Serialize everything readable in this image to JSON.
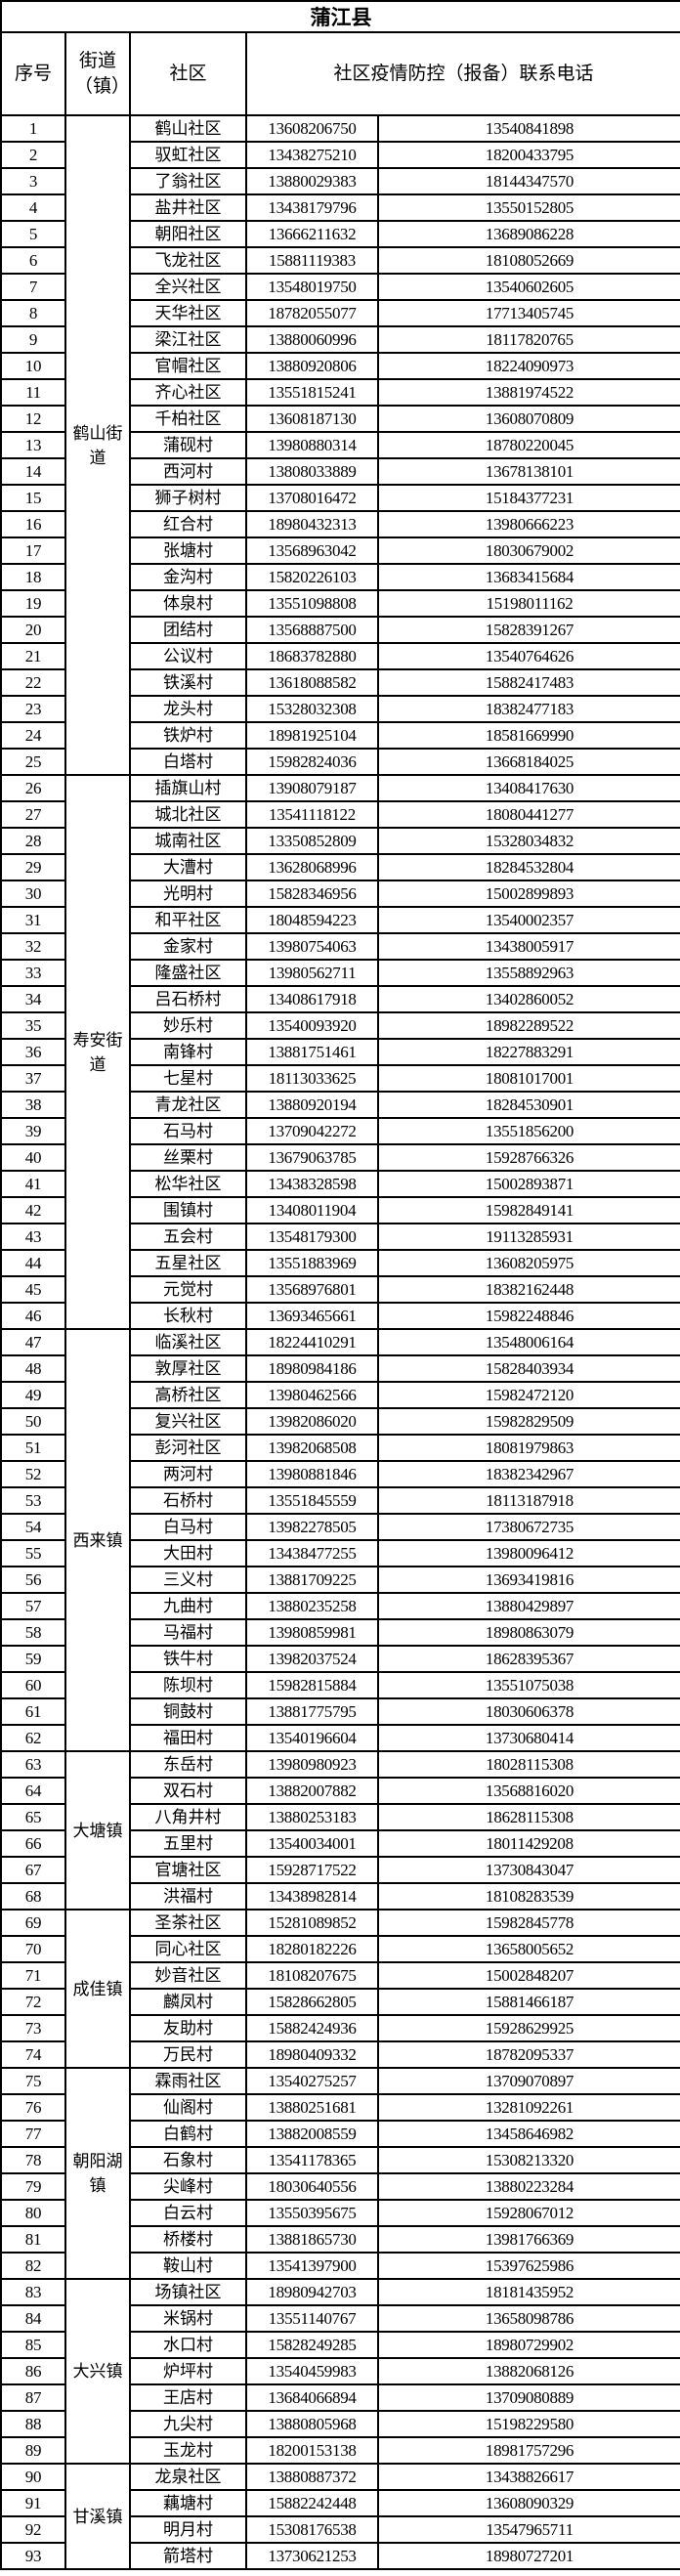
{
  "title": "蒲江县",
  "headers": {
    "no": "序号",
    "street": "街道（镇）",
    "community": "社区",
    "phone": "社区疫情防控（报备）联系电话"
  },
  "groups": [
    {
      "street": "鹤山街道",
      "rows": [
        [
          "1",
          "鹤山社区",
          "13608206750",
          "13540841898"
        ],
        [
          "2",
          "驭虹社区",
          "13438275210",
          "18200433795"
        ],
        [
          "3",
          "了翁社区",
          "13880029383",
          "18144347570"
        ],
        [
          "4",
          "盐井社区",
          "13438179796",
          "13550152805"
        ],
        [
          "5",
          "朝阳社区",
          "13666211632",
          "13689086228"
        ],
        [
          "6",
          "飞龙社区",
          "15881119383",
          "18108052669"
        ],
        [
          "7",
          "全兴社区",
          "13548019750",
          "13540602605"
        ],
        [
          "8",
          "天华社区",
          "18782055077",
          "17713405745"
        ],
        [
          "9",
          "梁江社区",
          "13880060996",
          "18117820765"
        ],
        [
          "10",
          "官帽社区",
          "13880920806",
          "18224090973"
        ],
        [
          "11",
          "齐心社区",
          "13551815241",
          "13881974522"
        ],
        [
          "12",
          "千柏社区",
          "13608187130",
          "13608070809"
        ],
        [
          "13",
          "蒲砚村",
          "13980880314",
          "18780220045"
        ],
        [
          "14",
          "西河村",
          "13808033889",
          "13678138101"
        ],
        [
          "15",
          "狮子树村",
          "13708016472",
          "15184377231"
        ],
        [
          "16",
          "红合村",
          "18980432313",
          "13980666223"
        ],
        [
          "17",
          "张塘村",
          "13568963042",
          "18030679002"
        ],
        [
          "18",
          "金沟村",
          "15820226103",
          "13683415684"
        ],
        [
          "19",
          "体泉村",
          "13551098808",
          "15198011162"
        ],
        [
          "20",
          "团结村",
          "13568887500",
          "15828391267"
        ],
        [
          "21",
          "公议村",
          "18683782880",
          "13540764626"
        ],
        [
          "22",
          "铁溪村",
          "13618088582",
          "15882417483"
        ],
        [
          "23",
          "龙头村",
          "15328032308",
          "18382477183"
        ],
        [
          "24",
          "铁炉村",
          "18981925104",
          "18581669990"
        ],
        [
          "25",
          "白塔村",
          "15982824036",
          "13668184025"
        ]
      ]
    },
    {
      "street": "寿安街道",
      "rows": [
        [
          "26",
          "插旗山村",
          "13908079187",
          "13408417630"
        ],
        [
          "27",
          "城北社区",
          "13541118122",
          "18080441277"
        ],
        [
          "28",
          "城南社区",
          "13350852809",
          "15328034832"
        ],
        [
          "29",
          "大漕村",
          "13628068996",
          "18284532804"
        ],
        [
          "30",
          "光明村",
          "15828346956",
          "15002899893"
        ],
        [
          "31",
          "和平社区",
          "18048594223",
          "13540002357"
        ],
        [
          "32",
          "金家村",
          "13980754063",
          "13438005917"
        ],
        [
          "33",
          "隆盛社区",
          "13980562711",
          "13558892963"
        ],
        [
          "34",
          "吕石桥村",
          "13408617918",
          "13402860052"
        ],
        [
          "35",
          "妙乐村",
          "13540093920",
          "18982289522"
        ],
        [
          "36",
          "南锋村",
          "13881751461",
          "18227883291"
        ],
        [
          "37",
          "七星村",
          "18113033625",
          "18081017001"
        ],
        [
          "38",
          "青龙社区",
          "13880920194",
          "18284530901"
        ],
        [
          "39",
          "石马村",
          "13709042272",
          "13551856200"
        ],
        [
          "40",
          "丝栗村",
          "13679063785",
          "15928766326"
        ],
        [
          "41",
          "松华社区",
          "13438328598",
          "15002893871"
        ],
        [
          "42",
          "围镇村",
          "13408011904",
          "15982849141"
        ],
        [
          "43",
          "五会村",
          "13548179300",
          "19113285931"
        ],
        [
          "44",
          "五星社区",
          "13551883969",
          "13608205975"
        ],
        [
          "45",
          "元觉村",
          "13568976801",
          "18382162448"
        ],
        [
          "46",
          "长秋村",
          "13693465661",
          "15982248846"
        ]
      ]
    },
    {
      "street": "西来镇",
      "rows": [
        [
          "47",
          "临溪社区",
          "18224410291",
          "13548006164"
        ],
        [
          "48",
          "敦厚社区",
          "18980984186",
          "15828403934"
        ],
        [
          "49",
          "高桥社区",
          "13980462566",
          "15982472120"
        ],
        [
          "50",
          "复兴社区",
          "13982086020",
          "15982829509"
        ],
        [
          "51",
          "彭河社区",
          "13982068508",
          "18081979863"
        ],
        [
          "52",
          "两河村",
          "13980881846",
          "18382342967"
        ],
        [
          "53",
          "石桥村",
          "13551845559",
          "18113187918"
        ],
        [
          "54",
          "白马村",
          "13982278505",
          "17380672735"
        ],
        [
          "55",
          "大田村",
          "13438477255",
          "13980096412"
        ],
        [
          "56",
          "三义村",
          "13881709225",
          "13693419816"
        ],
        [
          "57",
          "九曲村",
          "13880235258",
          "13880429897"
        ],
        [
          "58",
          "马福村",
          "13980859981",
          "18980863079"
        ],
        [
          "59",
          "铁牛村",
          "13982037524",
          "18628395367"
        ],
        [
          "60",
          "陈坝村",
          "15982815884",
          "13551075038"
        ],
        [
          "61",
          "铜鼓村",
          "13881775795",
          "18030606378"
        ],
        [
          "62",
          "福田村",
          "13540196604",
          "13730680414"
        ]
      ]
    },
    {
      "street": "大塘镇",
      "rows": [
        [
          "63",
          "东岳村",
          "13980980923",
          "18028115308"
        ],
        [
          "64",
          "双石村",
          "13882007882",
          "13568816020"
        ],
        [
          "65",
          "八角井村",
          "13880253183",
          "18628115308"
        ],
        [
          "66",
          "五里村",
          "13540034001",
          "18011429208"
        ],
        [
          "67",
          "官塘社区",
          "15928717522",
          "13730843047"
        ],
        [
          "68",
          "洪福村",
          "13438982814",
          "18108283539"
        ]
      ]
    },
    {
      "street": "成佳镇",
      "rows": [
        [
          "69",
          "圣茶社区",
          "15281089852",
          "15982845778"
        ],
        [
          "70",
          "同心社区",
          "18280182226",
          "13658005652"
        ],
        [
          "71",
          "妙音社区",
          "18108207675",
          "15002848207"
        ],
        [
          "72",
          "麟凤村",
          "15828662805",
          "15881466187"
        ],
        [
          "73",
          "友助村",
          "15882424936",
          "15928629925"
        ],
        [
          "74",
          "万民村",
          "18980409332",
          "18782095337"
        ]
      ]
    },
    {
      "street": "朝阳湖镇",
      "rows": [
        [
          "75",
          "霖雨社区",
          "13540275257",
          "13709070897"
        ],
        [
          "76",
          "仙阁村",
          "13880251681",
          "13281092261"
        ],
        [
          "77",
          "白鹤村",
          "13882008559",
          "13458646982"
        ],
        [
          "78",
          "石象村",
          "13541178365",
          "15308213320"
        ],
        [
          "79",
          "尖峰村",
          "18030640556",
          "13880223284"
        ],
        [
          "80",
          "白云村",
          "13550395675",
          "15928067012"
        ],
        [
          "81",
          "桥楼村",
          "13881865730",
          "13981766369"
        ],
        [
          "82",
          "鞍山村",
          "13541397900",
          "15397625986"
        ]
      ]
    },
    {
      "street": "大兴镇",
      "rows": [
        [
          "83",
          "场镇社区",
          "18980942703",
          "18181435952"
        ],
        [
          "84",
          "米锅村",
          "13551140767",
          "13658098786"
        ],
        [
          "85",
          "水口村",
          "15828249285",
          "18980729902"
        ],
        [
          "86",
          "炉坪村",
          "13540459983",
          "13882068126"
        ],
        [
          "87",
          "王店村",
          "13684066894",
          "13709080889"
        ],
        [
          "88",
          "九尖村",
          "13880805968",
          "15198229580"
        ],
        [
          "89",
          "玉龙村",
          "18200153138",
          "18981757296"
        ]
      ]
    },
    {
      "street": "甘溪镇",
      "rows": [
        [
          "90",
          "龙泉社区",
          "13880887372",
          "13438826617"
        ],
        [
          "91",
          "藕塘村",
          "15882242448",
          "13608090329"
        ],
        [
          "92",
          "明月村",
          "15308176538",
          "13547965711"
        ],
        [
          "93",
          "箭塔村",
          "13730621253",
          "18980727201"
        ]
      ]
    }
  ]
}
